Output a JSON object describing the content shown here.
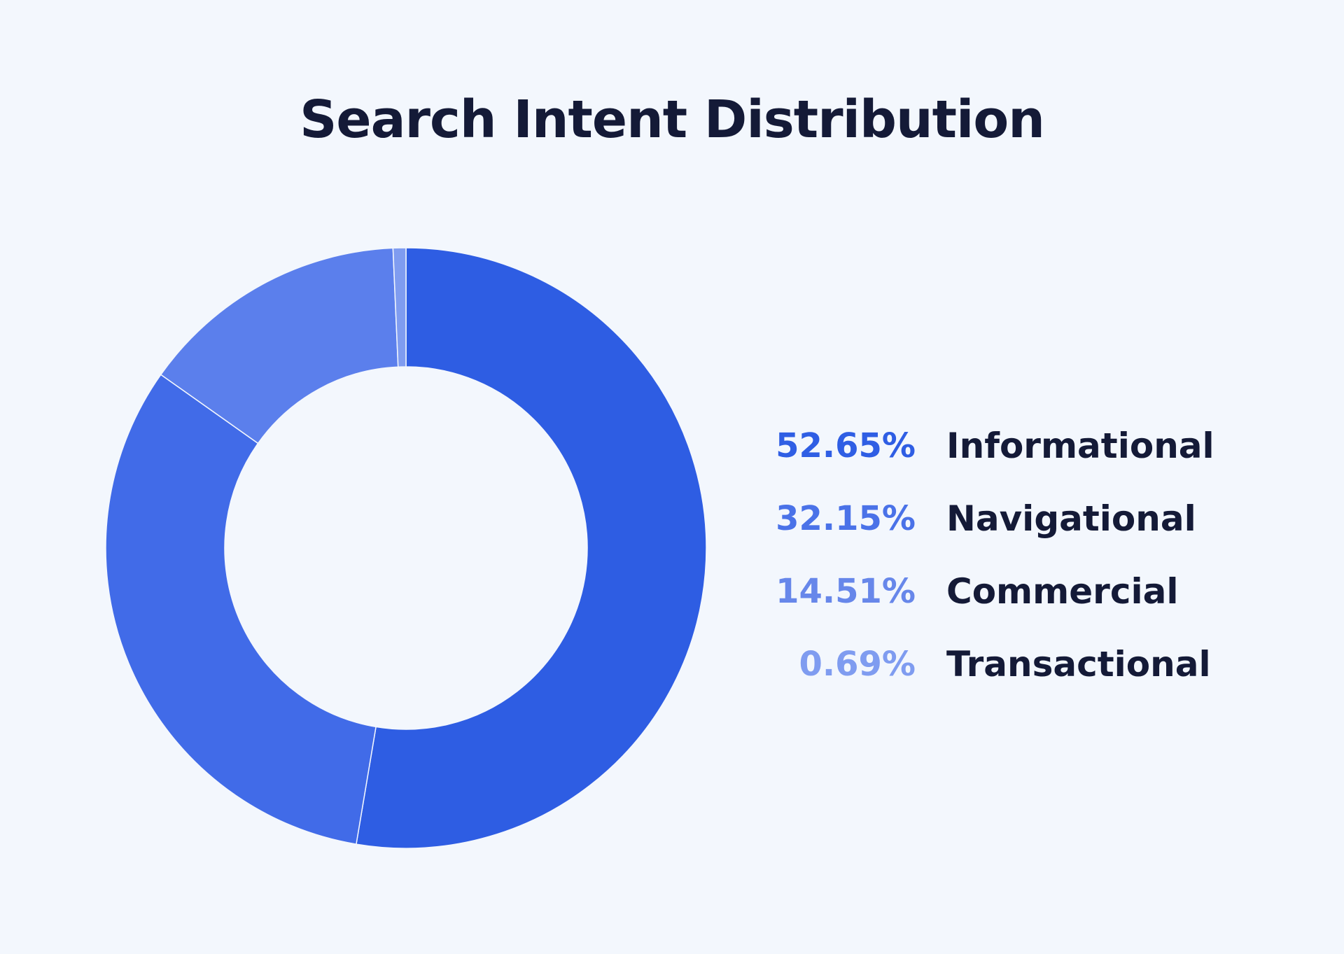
{
  "chart_data": {
    "type": "pie",
    "title": "Search Intent Distribution",
    "categories": [
      "Informational",
      "Navigational",
      "Commercial",
      "Transactional"
    ],
    "values": [
      52.65,
      32.15,
      14.51,
      0.69
    ],
    "value_labels": [
      "52.65%",
      "32.15%",
      "14.51%",
      "0.69%"
    ],
    "colors": [
      "#2e5de3",
      "#416be8",
      "#5b7fec",
      "#7f9cf0"
    ],
    "label_colors": [
      "#2f5ee4",
      "#4a72e8",
      "#6787ea",
      "#7f9cf0"
    ],
    "donut": true,
    "legend_placement": "right"
  }
}
